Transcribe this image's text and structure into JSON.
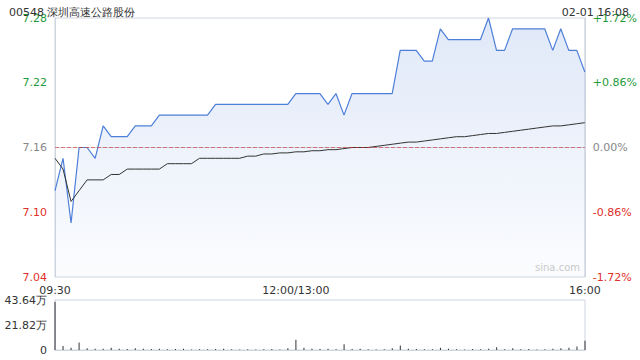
{
  "chart_data": [
    {
      "type": "line",
      "title": "00548 深圳高速公路股份",
      "subtitle": "02-01 16:08",
      "annotations": [
        "sina.com"
      ],
      "categories": [
        "09:30",
        null,
        null,
        null,
        null,
        null,
        null,
        null,
        null,
        null,
        null,
        null,
        null,
        null,
        null,
        null,
        null,
        null,
        null,
        null,
        null,
        null,
        null,
        null,
        null,
        null,
        null,
        null,
        null,
        null,
        "12:00/13:00",
        null,
        null,
        null,
        null,
        null,
        null,
        null,
        null,
        null,
        null,
        null,
        null,
        null,
        null,
        null,
        null,
        null,
        null,
        null,
        null,
        null,
        null,
        null,
        null,
        null,
        null,
        null,
        null,
        null,
        null,
        null,
        null,
        null,
        null,
        null,
        "16:00"
      ],
      "series": [
        {
          "type": "area",
          "color": "#4d7fd8",
          "values": [
            7.12,
            7.15,
            7.09,
            7.16,
            7.16,
            7.15,
            7.18,
            7.17,
            7.17,
            7.17,
            7.18,
            7.18,
            7.18,
            7.19,
            7.19,
            7.19,
            7.19,
            7.19,
            7.19,
            7.19,
            7.2,
            7.2,
            7.2,
            7.2,
            7.2,
            7.2,
            7.2,
            7.2,
            7.2,
            7.2,
            7.21,
            7.21,
            7.21,
            7.21,
            7.2,
            7.21,
            7.19,
            7.21,
            7.21,
            7.21,
            7.21,
            7.21,
            7.21,
            7.25,
            7.25,
            7.25,
            7.24,
            7.24,
            7.27,
            7.26,
            7.26,
            7.26,
            7.26,
            7.26,
            7.28,
            7.25,
            7.25,
            7.27,
            7.27,
            7.27,
            7.27,
            7.27,
            7.25,
            7.27,
            7.25,
            7.25,
            7.23
          ]
        },
        {
          "type": "line",
          "color": "#333333",
          "values": [
            7.15,
            7.14,
            7.11,
            7.12,
            7.13,
            7.13,
            7.13,
            7.135,
            7.135,
            7.14,
            7.14,
            7.14,
            7.14,
            7.14,
            7.145,
            7.145,
            7.145,
            7.145,
            7.15,
            7.15,
            7.15,
            7.15,
            7.15,
            7.15,
            7.152,
            7.152,
            7.154,
            7.154,
            7.155,
            7.155,
            7.156,
            7.156,
            7.157,
            7.157,
            7.158,
            7.158,
            7.159,
            7.16,
            7.16,
            7.16,
            7.161,
            7.162,
            7.163,
            7.164,
            7.165,
            7.165,
            7.166,
            7.167,
            7.168,
            7.169,
            7.17,
            7.17,
            7.171,
            7.172,
            7.173,
            7.173,
            7.174,
            7.175,
            7.176,
            7.177,
            7.178,
            7.179,
            7.18,
            7.18,
            7.181,
            7.182,
            7.183
          ]
        }
      ],
      "prev_close": 7.16,
      "ylim": [
        7.04,
        7.28
      ],
      "yticks": [
        7.04,
        {
          "value": 7.1,
          "label": "7.10"
        },
        7.16,
        7.22,
        7.28
      ],
      "y2lim": [
        -1.72,
        1.72
      ],
      "y2ticks": [
        {
          "value": -1.72,
          "label": "-1.72%"
        },
        {
          "value": -0.86,
          "label": "-0.86%"
        },
        {
          "value": 0,
          "label": "0.00%"
        },
        {
          "value": 0.86,
          "label": "+0.86%"
        },
        {
          "value": 1.72,
          "label": "+1.72%"
        }
      ],
      "grid": false
    },
    {
      "type": "bar",
      "categories": [
        "09:30",
        null,
        null,
        null,
        null,
        null,
        null,
        null,
        null,
        null,
        null,
        null,
        null,
        null,
        null,
        null,
        null,
        null,
        null,
        null,
        null,
        null,
        null,
        null,
        null,
        null,
        null,
        null,
        null,
        null,
        "12:00/13:00",
        null,
        null,
        null,
        null,
        null,
        null,
        null,
        null,
        null,
        null,
        null,
        null,
        null,
        null,
        null,
        null,
        null,
        null,
        null,
        null,
        null,
        null,
        null,
        null,
        null,
        null,
        null,
        null,
        null,
        null,
        null,
        null,
        null,
        null,
        null,
        "16:00"
      ],
      "color": "#333333",
      "values": [
        42,
        3.5,
        2,
        6.5,
        1.5,
        1,
        1.2,
        2,
        1,
        0.8,
        1.5,
        1,
        0.8,
        1.2,
        0.6,
        0.8,
        1,
        0.5,
        0.7,
        0.6,
        0.8,
        1,
        0.6,
        0.5,
        0.7,
        0.5,
        0.6,
        0.8,
        0.5,
        1.5,
        9,
        2,
        1.2,
        0.8,
        1,
        0.6,
        5,
        0.8,
        1,
        0.7,
        0.5,
        0.6,
        1.5,
        4,
        1.2,
        0.8,
        0.6,
        0.7,
        2,
        1,
        0.6,
        0.5,
        0.8,
        0.6,
        1,
        2.5,
        0.7,
        1.5,
        0.6,
        0.8,
        0.5,
        0.7,
        1,
        1.5,
        2,
        3,
        8
      ],
      "ylim": [
        0,
        43.64
      ],
      "yticks": [
        0,
        {
          "value": 21.82,
          "label": "21.82万"
        },
        {
          "value": 43.64,
          "label": "43.64万"
        }
      ],
      "tick_labels": "y",
      "grid": false
    }
  ]
}
